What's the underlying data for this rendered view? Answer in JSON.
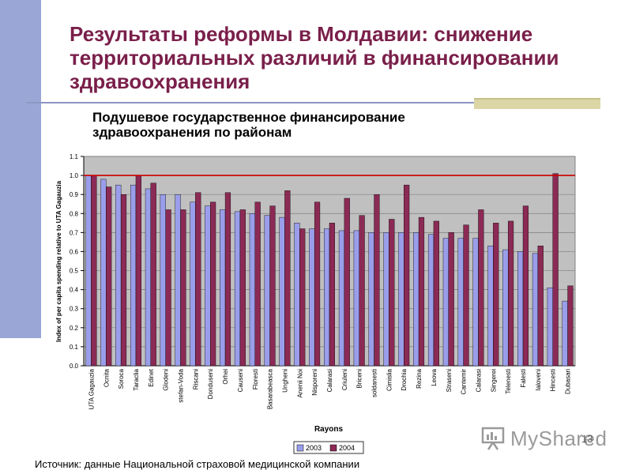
{
  "slide": {
    "title": "Результаты реформы в Молдавии: снижение территориальных различий в финансировании здравоохранения",
    "subtitle_line1": "Подушевое государственное финансирование",
    "subtitle_line2": "здравоохранения по районам",
    "source": "Источник: данные Национальной страховой медицинской компании",
    "watermark": "MyShared",
    "page_number": "13"
  },
  "colors": {
    "title": "#7a1f4a",
    "series_2003": "#9a9eea",
    "series_2004": "#8b2a54",
    "reference_line": "#cc0000",
    "plot_bg": "#c0c0c0"
  },
  "chart_data": {
    "type": "bar",
    "title": "Подушевое государственное финансирование здравоохранения по районам",
    "xlabel": "Rayons",
    "ylabel": "Index of per capita spending relative to UTA Gagauzia",
    "ylim": [
      0,
      1.1
    ],
    "yticks": [
      "0.0",
      "0.1",
      "0.2",
      "0.3",
      "0.4",
      "0.5",
      "0.6",
      "0.7",
      "0.8",
      "0.9",
      "1.0",
      "1.1"
    ],
    "reference_line": 1.0,
    "legend_position": "bottom",
    "categories": [
      "UTA Gagauzia",
      "Ocnita",
      "Soroca",
      "Taraclia",
      "Edinet",
      "Glodeni",
      "stefan-Voda",
      "Riscani",
      "Donduseni",
      "Orhei",
      "Causeni",
      "Floresti",
      "Basarabeasca",
      "Ungheni",
      "Anenii Noi",
      "Nisporeni",
      "Calarasi",
      "Criuleni",
      "Briceni",
      "soldanesti",
      "Cimislia",
      "Drochia",
      "Rezina",
      "Leova",
      "Straseni",
      "Cantemir",
      "Calarasi",
      "Singerei",
      "Telenesti",
      "Falesti",
      "Ialoveni",
      "Hincesti",
      "Dubasari"
    ],
    "series": [
      {
        "name": "2003",
        "values": [
          1.0,
          0.98,
          0.95,
          0.95,
          0.93,
          0.9,
          0.9,
          0.86,
          0.84,
          0.82,
          0.81,
          0.8,
          0.79,
          0.78,
          0.75,
          0.72,
          0.72,
          0.71,
          0.71,
          0.7,
          0.7,
          0.7,
          0.7,
          0.69,
          0.67,
          0.67,
          0.67,
          0.63,
          0.61,
          0.6,
          0.59,
          0.41,
          0.34
        ]
      },
      {
        "name": "2004",
        "values": [
          1.0,
          0.94,
          0.9,
          1.0,
          0.96,
          0.82,
          0.82,
          0.91,
          0.86,
          0.91,
          0.82,
          0.86,
          0.84,
          0.92,
          0.72,
          0.86,
          0.75,
          0.88,
          0.79,
          0.9,
          0.77,
          0.95,
          0.78,
          0.76,
          0.7,
          0.74,
          0.82,
          0.75,
          0.76,
          0.84,
          0.63,
          1.01,
          0.42
        ]
      }
    ]
  }
}
